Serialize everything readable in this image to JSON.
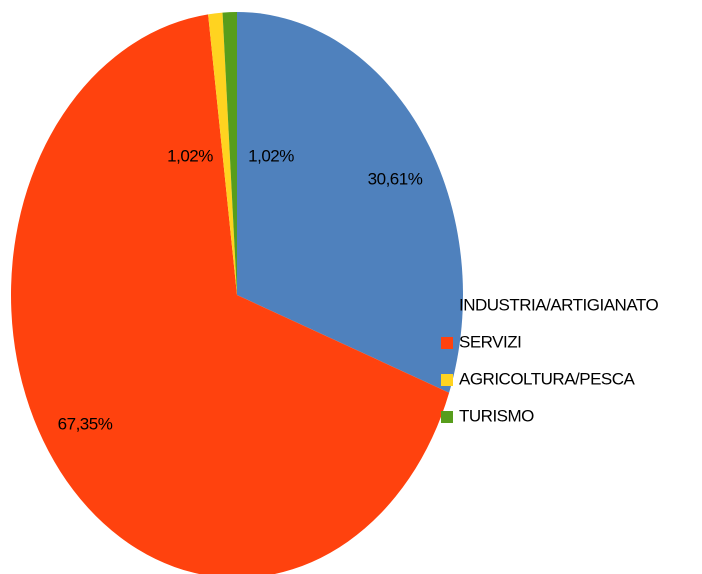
{
  "chart_data": {
    "type": "pie",
    "categories": [
      "INDUSTRIA/ARTIGIANATO",
      "SERVIZI",
      "AGRICOLTURA/PESCA",
      "TURISMO"
    ],
    "values": [
      30.61,
      67.35,
      1.02,
      1.02
    ],
    "value_labels": [
      "30,61%",
      "67,35%",
      "1,02%",
      "1,02%"
    ],
    "colors": [
      "#4f81bd",
      "#ff420e",
      "#ffd320",
      "#579d1c"
    ],
    "legend": "right"
  }
}
